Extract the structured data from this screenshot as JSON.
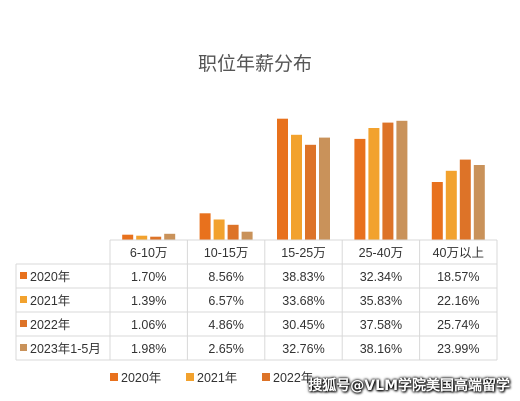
{
  "chart_data": {
    "type": "bar",
    "title": "职位年薪分布",
    "categories": [
      "6-10万",
      "10-15万",
      "15-25万",
      "25-40万",
      "40万以上"
    ],
    "series": [
      {
        "name": "2020年",
        "color": "#E8711D",
        "values": [
          1.7,
          8.56,
          38.83,
          32.34,
          18.57
        ],
        "labels": [
          "1.70%",
          "8.56%",
          "38.83%",
          "32.34%",
          "18.57%"
        ]
      },
      {
        "name": "2021年",
        "color": "#F2A22E",
        "values": [
          1.39,
          6.57,
          33.68,
          35.83,
          22.16
        ],
        "labels": [
          "1.39%",
          "6.57%",
          "33.68%",
          "35.83%",
          "22.16%"
        ]
      },
      {
        "name": "2022年",
        "color": "#DD7328",
        "values": [
          1.06,
          4.86,
          30.45,
          37.58,
          25.74
        ],
        "labels": [
          "1.06%",
          "4.86%",
          "30.45%",
          "37.58%",
          "25.74%"
        ]
      },
      {
        "name": "2023年1-5月",
        "color": "#C9925A",
        "values": [
          1.98,
          2.65,
          32.76,
          38.16,
          23.99
        ],
        "labels": [
          "1.98%",
          "2.65%",
          "32.76%",
          "38.16%",
          "23.99%"
        ]
      }
    ],
    "legend_position": "bottom",
    "data_table": true,
    "grid": false
  },
  "legend_visible": [
    "2020年",
    "2021年",
    "2022年"
  ],
  "watermark": "搜狐号@VLM学院美国高端留学"
}
